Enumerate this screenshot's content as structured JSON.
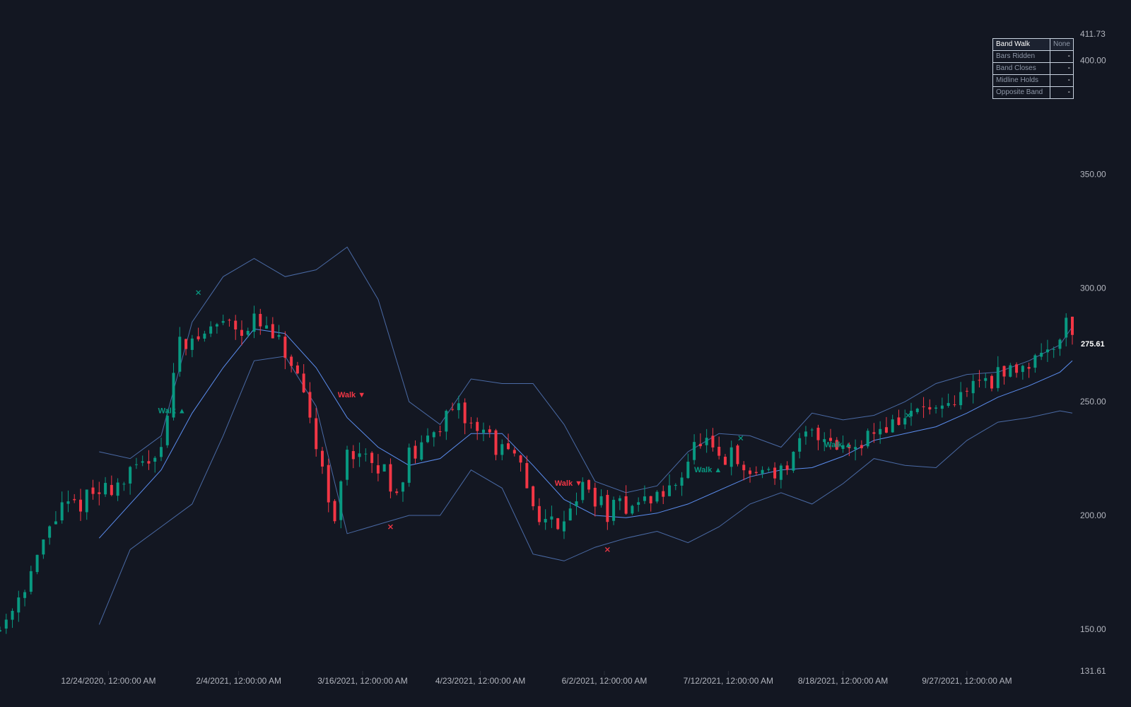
{
  "chart_data": {
    "type": "candlestick",
    "colors": {
      "background": "#131722",
      "up": "#089981",
      "down": "#f23645",
      "basis": "#5b8def",
      "band": "#4a6aa5",
      "axis_text": "#b2b5be",
      "last_price": "#ffffff"
    },
    "y_axis": {
      "scale": "linear",
      "range": [
        131.61,
        411.73
      ],
      "ticks": [
        "411.73",
        "400.00",
        "350.00",
        "300.00",
        "250.00",
        "200.00",
        "150.00",
        "131.61"
      ]
    },
    "last_price_label": "275.61",
    "x_axis": {
      "date_range": [
        "2020-11-19",
        "2021-10-31"
      ],
      "ticks": [
        {
          "date": "2020-12-24",
          "label": "12/24/2020, 12:00:00 AM"
        },
        {
          "date": "2021-02-04",
          "label": "2/4/2021, 12:00:00 AM"
        },
        {
          "date": "2021-03-16",
          "label": "3/16/2021, 12:00:00 AM"
        },
        {
          "date": "2021-04-23",
          "label": "4/23/2021, 12:00:00 AM"
        },
        {
          "date": "2021-06-02",
          "label": "6/2/2021, 12:00:00 AM"
        },
        {
          "date": "2021-07-12",
          "label": "7/12/2021, 12:00:00 AM"
        },
        {
          "date": "2021-08-18",
          "label": "8/18/2021, 12:00:00 AM"
        },
        {
          "date": "2021-09-27",
          "label": "9/27/2021, 12:00:00 AM"
        }
      ]
    },
    "price_path": [
      [
        "2020-11-19",
        150
      ],
      [
        "2020-11-23",
        160
      ],
      [
        "2020-11-27",
        170
      ],
      [
        "2020-12-01",
        180
      ],
      [
        "2020-12-05",
        195
      ],
      [
        "2020-12-09",
        203
      ],
      [
        "2020-12-13",
        204
      ],
      [
        "2020-12-17",
        208
      ],
      [
        "2020-12-21",
        210
      ],
      [
        "2020-12-25",
        213
      ],
      [
        "2020-12-29",
        215
      ],
      [
        "2021-01-02",
        220
      ],
      [
        "2021-01-06",
        225
      ],
      [
        "2021-01-10",
        232
      ],
      [
        "2021-01-13",
        250
      ],
      [
        "2021-01-16",
        280
      ],
      [
        "2021-01-20",
        275
      ],
      [
        "2021-01-24",
        280
      ],
      [
        "2021-01-28",
        284
      ],
      [
        "2021-02-01",
        287
      ],
      [
        "2021-02-05",
        282
      ],
      [
        "2021-02-09",
        285
      ],
      [
        "2021-02-13",
        281
      ],
      [
        "2021-02-17",
        275
      ],
      [
        "2021-02-21",
        266
      ],
      [
        "2021-02-25",
        250
      ],
      [
        "2021-03-01",
        232
      ],
      [
        "2021-03-05",
        210
      ],
      [
        "2021-03-07",
        195
      ],
      [
        "2021-03-11",
        230
      ],
      [
        "2021-03-15",
        227
      ],
      [
        "2021-03-19",
        220
      ],
      [
        "2021-03-23",
        220
      ],
      [
        "2021-03-27",
        210
      ],
      [
        "2021-03-31",
        226
      ],
      [
        "2021-04-04",
        228
      ],
      [
        "2021-04-08",
        240
      ],
      [
        "2021-04-12",
        242
      ],
      [
        "2021-04-16",
        245
      ],
      [
        "2021-04-20",
        240
      ],
      [
        "2021-04-24",
        238
      ],
      [
        "2021-04-28",
        230
      ],
      [
        "2021-05-02",
        227
      ],
      [
        "2021-05-06",
        220
      ],
      [
        "2021-05-10",
        205
      ],
      [
        "2021-05-14",
        197
      ],
      [
        "2021-05-18",
        197
      ],
      [
        "2021-05-22",
        205
      ],
      [
        "2021-05-26",
        212
      ],
      [
        "2021-05-30",
        208
      ],
      [
        "2021-06-03",
        201
      ],
      [
        "2021-06-07",
        204
      ],
      [
        "2021-06-11",
        205
      ],
      [
        "2021-06-15",
        206
      ],
      [
        "2021-06-19",
        209
      ],
      [
        "2021-06-23",
        210
      ],
      [
        "2021-06-27",
        220
      ],
      [
        "2021-07-01",
        230
      ],
      [
        "2021-07-05",
        231
      ],
      [
        "2021-07-09",
        222
      ],
      [
        "2021-07-13",
        226
      ],
      [
        "2021-07-17",
        218
      ],
      [
        "2021-07-21",
        219
      ],
      [
        "2021-07-25",
        221
      ],
      [
        "2021-07-29",
        219
      ],
      [
        "2021-08-02",
        225
      ],
      [
        "2021-08-06",
        235
      ],
      [
        "2021-08-10",
        236
      ],
      [
        "2021-08-14",
        234
      ],
      [
        "2021-08-18",
        230
      ],
      [
        "2021-08-22",
        232
      ],
      [
        "2021-08-26",
        236
      ],
      [
        "2021-08-30",
        238
      ],
      [
        "2021-09-03",
        240
      ],
      [
        "2021-09-07",
        243
      ],
      [
        "2021-09-11",
        246
      ],
      [
        "2021-09-15",
        247
      ],
      [
        "2021-09-19",
        244
      ],
      [
        "2021-09-23",
        248
      ],
      [
        "2021-09-27",
        256
      ],
      [
        "2021-10-01",
        260
      ],
      [
        "2021-10-05",
        260
      ],
      [
        "2021-10-09",
        262
      ],
      [
        "2021-10-13",
        265
      ],
      [
        "2021-10-17",
        268
      ],
      [
        "2021-10-21",
        272
      ],
      [
        "2021-10-25",
        276
      ],
      [
        "2021-10-29",
        285
      ],
      [
        "2021-10-31",
        281
      ]
    ],
    "bollinger": {
      "basis": [
        [
          "2020-12-21",
          190
        ],
        [
          "2020-12-31",
          205
        ],
        [
          "2021-01-10",
          220
        ],
        [
          "2021-01-20",
          245
        ],
        [
          "2021-01-30",
          265
        ],
        [
          "2021-02-09",
          282
        ],
        [
          "2021-02-19",
          280
        ],
        [
          "2021-03-01",
          265
        ],
        [
          "2021-03-11",
          243
        ],
        [
          "2021-03-21",
          230
        ],
        [
          "2021-03-31",
          222
        ],
        [
          "2021-04-10",
          225
        ],
        [
          "2021-04-20",
          236
        ],
        [
          "2021-04-30",
          236
        ],
        [
          "2021-05-10",
          222
        ],
        [
          "2021-05-20",
          207
        ],
        [
          "2021-05-30",
          200
        ],
        [
          "2021-06-09",
          199
        ],
        [
          "2021-06-19",
          201
        ],
        [
          "2021-06-29",
          205
        ],
        [
          "2021-07-09",
          211
        ],
        [
          "2021-07-19",
          217
        ],
        [
          "2021-07-29",
          220
        ],
        [
          "2021-08-08",
          221
        ],
        [
          "2021-08-18",
          226
        ],
        [
          "2021-08-28",
          233
        ],
        [
          "2021-09-07",
          236
        ],
        [
          "2021-09-17",
          239
        ],
        [
          "2021-09-27",
          245
        ],
        [
          "2021-10-07",
          252
        ],
        [
          "2021-10-17",
          257
        ],
        [
          "2021-10-27",
          263
        ],
        [
          "2021-10-31",
          268
        ]
      ],
      "upper": [
        [
          "2020-12-21",
          228
        ],
        [
          "2020-12-31",
          225
        ],
        [
          "2021-01-10",
          235
        ],
        [
          "2021-01-20",
          285
        ],
        [
          "2021-01-30",
          305
        ],
        [
          "2021-02-09",
          313
        ],
        [
          "2021-02-19",
          305
        ],
        [
          "2021-03-01",
          308
        ],
        [
          "2021-03-11",
          318
        ],
        [
          "2021-03-21",
          295
        ],
        [
          "2021-03-31",
          250
        ],
        [
          "2021-04-10",
          240
        ],
        [
          "2021-04-20",
          260
        ],
        [
          "2021-04-30",
          258
        ],
        [
          "2021-05-10",
          258
        ],
        [
          "2021-05-20",
          240
        ],
        [
          "2021-05-30",
          215
        ],
        [
          "2021-06-09",
          210
        ],
        [
          "2021-06-19",
          213
        ],
        [
          "2021-06-29",
          228
        ],
        [
          "2021-07-09",
          236
        ],
        [
          "2021-07-19",
          235
        ],
        [
          "2021-07-29",
          230
        ],
        [
          "2021-08-08",
          245
        ],
        [
          "2021-08-18",
          242
        ],
        [
          "2021-08-28",
          244
        ],
        [
          "2021-09-07",
          250
        ],
        [
          "2021-09-17",
          258
        ],
        [
          "2021-09-27",
          262
        ],
        [
          "2021-10-07",
          263
        ],
        [
          "2021-10-17",
          268
        ],
        [
          "2021-10-27",
          275
        ],
        [
          "2021-10-31",
          283
        ]
      ],
      "lower": [
        [
          "2020-12-21",
          152
        ],
        [
          "2020-12-31",
          185
        ],
        [
          "2021-01-10",
          195
        ],
        [
          "2021-01-20",
          205
        ],
        [
          "2021-01-30",
          235
        ],
        [
          "2021-02-09",
          268
        ],
        [
          "2021-02-19",
          270
        ],
        [
          "2021-03-01",
          248
        ],
        [
          "2021-03-11",
          192
        ],
        [
          "2021-03-21",
          196
        ],
        [
          "2021-03-31",
          200
        ],
        [
          "2021-04-10",
          200
        ],
        [
          "2021-04-20",
          220
        ],
        [
          "2021-04-30",
          212
        ],
        [
          "2021-05-10",
          183
        ],
        [
          "2021-05-20",
          180
        ],
        [
          "2021-05-30",
          186
        ],
        [
          "2021-06-09",
          190
        ],
        [
          "2021-06-19",
          193
        ],
        [
          "2021-06-29",
          188
        ],
        [
          "2021-07-09",
          195
        ],
        [
          "2021-07-19",
          205
        ],
        [
          "2021-07-29",
          210
        ],
        [
          "2021-08-08",
          205
        ],
        [
          "2021-08-18",
          214
        ],
        [
          "2021-08-28",
          225
        ],
        [
          "2021-09-07",
          222
        ],
        [
          "2021-09-17",
          221
        ],
        [
          "2021-09-27",
          233
        ],
        [
          "2021-10-07",
          241
        ],
        [
          "2021-10-17",
          243
        ],
        [
          "2021-10-27",
          246
        ],
        [
          "2021-10-31",
          245
        ]
      ]
    },
    "band_walk_markers": [
      {
        "date": "2021-01-09",
        "price": 245,
        "text": "Walk ▲",
        "color": "#089981"
      },
      {
        "date": "2021-03-08",
        "price": 252,
        "text": "Walk ▼",
        "color": "#f23645"
      },
      {
        "date": "2021-05-17",
        "price": 213,
        "text": "Walk ▼",
        "color": "#f23645"
      },
      {
        "date": "2021-07-01",
        "price": 219,
        "text": "Walk ▲",
        "color": "#089981"
      },
      {
        "date": "2021-08-12",
        "price": 230,
        "text": "Walk ▲",
        "color": "#089981"
      }
    ],
    "walk_end_markers": [
      {
        "date": "2021-01-22",
        "price": 298,
        "color": "#089981"
      },
      {
        "date": "2021-03-25",
        "price": 195,
        "color": "#f23645"
      },
      {
        "date": "2021-06-03",
        "price": 185,
        "color": "#f23645"
      },
      {
        "date": "2021-07-16",
        "price": 234,
        "color": "#089981"
      },
      {
        "date": "2021-09-08",
        "price": 244,
        "color": "#089981"
      }
    ]
  },
  "stats_table": {
    "header": {
      "label": "Band Walk",
      "value": "None"
    },
    "rows": [
      {
        "label": "Bars Ridden",
        "value": "-"
      },
      {
        "label": "Band Closes",
        "value": "-"
      },
      {
        "label": "Midline Holds",
        "value": "-"
      },
      {
        "label": "Opposite Band",
        "value": "-"
      }
    ]
  }
}
